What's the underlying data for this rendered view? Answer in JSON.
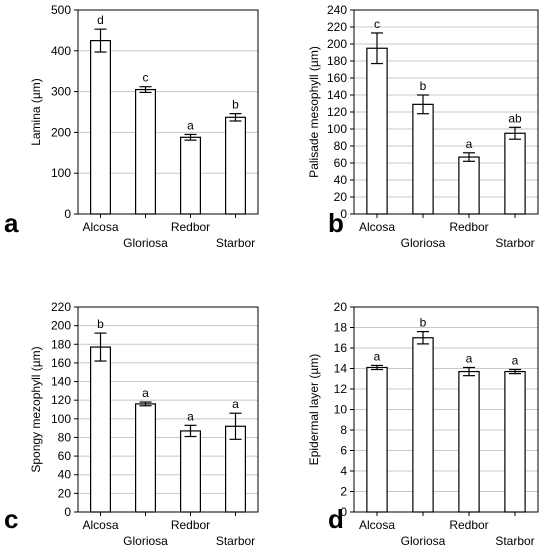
{
  "chart_data": [
    {
      "type": "bar",
      "panel": "a",
      "ylabel": "Lamina (µm)",
      "categories": [
        "Alcosa",
        "Gloriosa",
        "Redbor",
        "Starbor"
      ],
      "values": [
        425,
        305,
        188,
        237
      ],
      "errors": [
        28,
        7,
        7,
        9
      ],
      "sig": [
        "d",
        "c",
        "a",
        "b"
      ],
      "ylim": [
        0,
        500
      ],
      "yticks": [
        0,
        100,
        200,
        300,
        400,
        500
      ],
      "grid": true
    },
    {
      "type": "bar",
      "panel": "b",
      "ylabel": "Palisade mesophyll (µm)",
      "categories": [
        "Alcosa",
        "Gloriosa",
        "Redbor",
        "Starbor"
      ],
      "values": [
        195,
        129,
        67,
        95
      ],
      "errors": [
        18,
        11,
        5,
        7
      ],
      "sig": [
        "c",
        "b",
        "a",
        "ab"
      ],
      "ylim": [
        0,
        240
      ],
      "yticks": [
        0,
        20,
        40,
        60,
        80,
        100,
        120,
        140,
        160,
        180,
        200,
        220,
        240
      ],
      "grid": true
    },
    {
      "type": "bar",
      "panel": "c",
      "ylabel": "Spongy mezophyll (µm)",
      "categories": [
        "Alcosa",
        "Gloriosa",
        "Redbor",
        "Starbor"
      ],
      "values": [
        177,
        116,
        87,
        92
      ],
      "errors": [
        15,
        2,
        6,
        14
      ],
      "sig": [
        "b",
        "a",
        "a",
        "a"
      ],
      "ylim": [
        0,
        220
      ],
      "yticks": [
        0,
        20,
        40,
        60,
        80,
        100,
        120,
        140,
        160,
        180,
        200,
        220
      ],
      "grid": true
    },
    {
      "type": "bar",
      "panel": "d",
      "ylabel": "Epidermal layer (µm)",
      "categories": [
        "Alcosa",
        "Gloriosa",
        "Redbor",
        "Starbor"
      ],
      "values": [
        14.1,
        17.0,
        13.7,
        13.7
      ],
      "errors": [
        0.2,
        0.6,
        0.4,
        0.2
      ],
      "sig": [
        "a",
        "b",
        "a",
        "a"
      ],
      "ylim": [
        0,
        20
      ],
      "yticks": [
        0,
        2,
        4,
        6,
        8,
        10,
        12,
        14,
        16,
        18,
        20
      ],
      "grid": true
    }
  ]
}
